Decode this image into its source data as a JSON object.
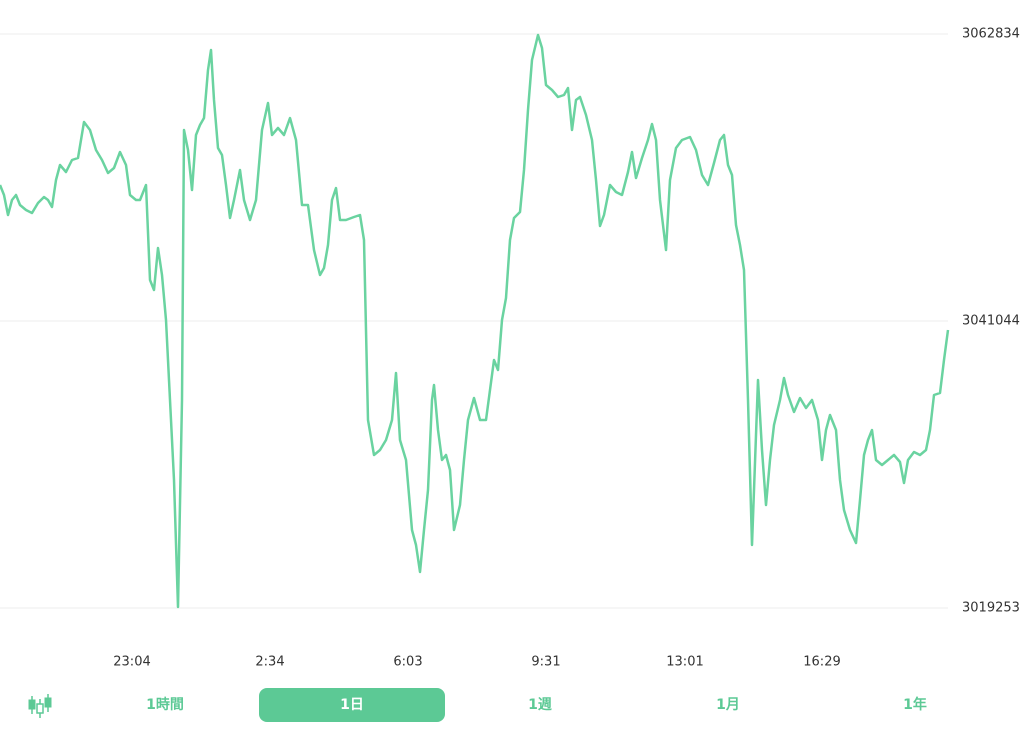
{
  "chart_data": {
    "type": "line",
    "color": "#6ad3a0",
    "grid": true,
    "x": [
      0,
      4,
      8,
      12,
      16,
      20,
      26,
      32,
      38,
      44,
      48,
      52,
      56,
      60,
      66,
      72,
      78,
      84,
      90,
      96,
      102,
      108,
      114,
      120,
      126,
      130,
      136,
      140,
      146,
      150,
      154,
      158,
      162,
      166,
      170,
      174,
      178,
      182,
      184,
      188,
      192,
      196,
      200,
      204,
      208,
      211,
      214,
      218,
      222,
      226,
      230,
      234,
      240,
      244,
      250,
      256,
      262,
      268,
      272,
      278,
      284,
      290,
      296,
      302,
      308,
      314,
      320,
      324,
      328,
      332,
      336,
      340,
      346,
      354,
      360,
      364,
      368,
      374,
      380,
      386,
      392,
      396,
      400,
      406,
      412,
      416,
      420,
      424,
      428,
      432,
      434,
      438,
      442,
      446,
      450,
      454,
      460,
      464,
      468,
      474,
      480,
      486,
      490,
      494,
      498,
      502,
      506,
      510,
      514,
      520,
      524,
      528,
      532,
      538,
      542,
      546,
      552,
      558,
      564,
      568,
      572,
      576,
      580,
      586,
      592,
      596,
      600,
      604,
      610,
      616,
      622,
      628,
      632,
      636,
      642,
      648,
      652,
      656,
      660,
      666,
      670,
      676,
      682,
      690,
      696,
      702,
      708,
      714,
      720,
      724,
      728,
      732,
      736,
      740,
      744,
      748,
      752,
      758,
      762,
      766,
      770,
      774,
      780,
      784,
      788,
      794,
      800,
      806,
      812,
      818,
      822,
      826,
      830,
      836,
      840,
      844,
      850,
      856,
      860,
      864,
      868,
      872,
      876,
      882,
      888,
      894,
      900,
      904,
      908,
      914,
      920,
      926,
      930,
      934,
      940,
      944,
      948
    ],
    "values": [
      3051369,
      3050610,
      3049091,
      3050230,
      3050610,
      3049851,
      3049471,
      3049243,
      3050003,
      3050458,
      3050230,
      3049699,
      3051749,
      3052888,
      3052356,
      3053267,
      3053419,
      3056153,
      3055545,
      3054027,
      3053267,
      3052280,
      3052660,
      3053875,
      3052888,
      3050610,
      3050230,
      3050230,
      3051369,
      3044156,
      3043397,
      3046586,
      3044536,
      3041119,
      3035045,
      3028971,
      3019328,
      3035045,
      3055545,
      3054027,
      3050990,
      3055166,
      3055925,
      3056456,
      3060101,
      3061619,
      3057823,
      3054179,
      3053647,
      3051369,
      3048864,
      3050230,
      3052508,
      3050230,
      3048712,
      3050230,
      3055545,
      3057595,
      3055166,
      3055697,
      3055166,
      3056456,
      3054786,
      3049851,
      3049851,
      3046434,
      3044536,
      3045067,
      3046814,
      3050230,
      3051141,
      3048712,
      3048712,
      3048940,
      3049091,
      3047193,
      3033527,
      3030869,
      3031249,
      3032008,
      3033527,
      3037095,
      3032008,
      3030490,
      3025175,
      3024036,
      3021986,
      3025175,
      3028212,
      3035045,
      3036184,
      3032767,
      3030490,
      3030869,
      3029730,
      3025175,
      3027073,
      3030490,
      3033527,
      3035197,
      3033527,
      3033527,
      3035804,
      3038082,
      3037323,
      3041119,
      3042790,
      3047193,
      3048864,
      3049319,
      3052508,
      3057064,
      3060860,
      3062758,
      3061771,
      3058962,
      3058582,
      3058051,
      3058203,
      3058734,
      3055545,
      3057823,
      3058051,
      3056684,
      3054786,
      3051749,
      3048256,
      3049091,
      3051369,
      3050838,
      3050610,
      3052356,
      3053875,
      3051901,
      3053419,
      3054786,
      3056001,
      3054786,
      3050230,
      3046434,
      3051749,
      3054179,
      3054786,
      3055014,
      3054027,
      3052128,
      3051369,
      3053040,
      3054786,
      3055166,
      3052888,
      3052128,
      3048332,
      3046814,
      3044916,
      3035045,
      3024036,
      3036564,
      3031249,
      3027073,
      3030490,
      3033147,
      3035045,
      3036716,
      3035425,
      3034134,
      3035197,
      3034438,
      3035045,
      3033527,
      3030490,
      3032767,
      3033906,
      3032767,
      3028971,
      3026693,
      3025175,
      3024188,
      3027453,
      3030869,
      3032008,
      3032767,
      3030490,
      3030110,
      3030490,
      3030869,
      3030338,
      3028743,
      3030490,
      3031097,
      3030869,
      3031249,
      3032767,
      3035425,
      3035577,
      3038082,
      3040360
    ],
    "xlim": [
      0,
      948
    ],
    "xticks": [
      {
        "value": 132,
        "label": "23:04"
      },
      {
        "value": 270,
        "label": "2:34"
      },
      {
        "value": 408,
        "label": "6:03"
      },
      {
        "value": 546,
        "label": "9:31"
      },
      {
        "value": 685,
        "label": "13:01"
      },
      {
        "value": 822,
        "label": "16:29"
      }
    ],
    "ylim": [
      3019253,
      3062834
    ],
    "yticks": [
      3019253,
      3041044,
      3062834
    ]
  },
  "tabs": {
    "items": [
      "1時間",
      "1日",
      "1週",
      "1月",
      "1年"
    ],
    "selected": 1
  }
}
